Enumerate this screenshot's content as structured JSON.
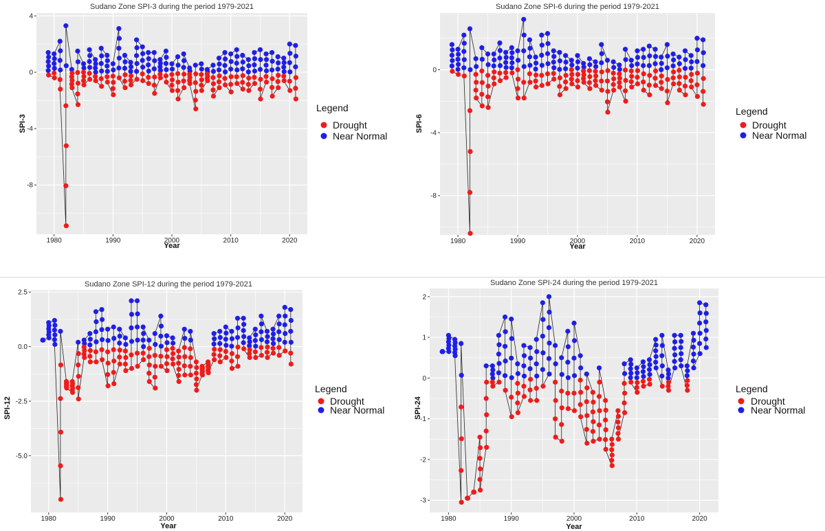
{
  "chart_data": [
    {
      "type": "scatter",
      "title": "Sudano Zone SPI-3 during the period 1979-2021",
      "xlabel": "Year",
      "ylabel": "SPI-3",
      "xlim": [
        1977,
        2023
      ],
      "ylim": [
        -11.5,
        4.2
      ],
      "xticks": [
        1980,
        1990,
        2000,
        2010,
        2020
      ],
      "yticks": [
        4,
        0,
        -4,
        -8
      ],
      "ytick_labels": [
        "4",
        "0",
        "-4",
        "-8"
      ],
      "grid": true,
      "legend": {
        "title": "Legend",
        "placement": "right",
        "entries": [
          "Drought",
          "Near Normal"
        ]
      },
      "colors": {
        "Drought": "#ee1c1c",
        "Near Normal": "#1f1fe6",
        "panel": "#ebebeb",
        "grid": "#ffffff",
        "line": "#222222"
      },
      "yearly_range": {
        "years": [
          1979,
          1980,
          1981,
          1982,
          1983,
          1984,
          1985,
          1986,
          1987,
          1988,
          1989,
          1990,
          1991,
          1992,
          1993,
          1994,
          1995,
          1996,
          1997,
          1998,
          1999,
          2000,
          2001,
          2002,
          2003,
          2004,
          2005,
          2006,
          2007,
          2008,
          2009,
          2010,
          2011,
          2012,
          2013,
          2014,
          2015,
          2016,
          2017,
          2018,
          2019,
          2020,
          2021
        ],
        "min": [
          -0.2,
          -0.4,
          -1.2,
          -10.9,
          -1.1,
          -2.3,
          -0.9,
          -0.5,
          -0.6,
          -1.0,
          -0.7,
          -1.6,
          -0.4,
          -1.1,
          -0.9,
          -0.5,
          -0.6,
          -0.8,
          -1.5,
          -0.4,
          -0.7,
          -1.3,
          -1.9,
          -1.1,
          -0.8,
          -2.6,
          -1.3,
          -0.6,
          -1.7,
          -1.1,
          -0.9,
          -1.4,
          -0.8,
          -1.2,
          -1.3,
          -0.8,
          -1.9,
          -0.7,
          -1.7,
          -1.1,
          -0.6,
          -1.3,
          -1.9
        ],
        "max": [
          1.4,
          1.3,
          2.2,
          3.3,
          0.2,
          1.5,
          0.6,
          1.6,
          0.9,
          1.7,
          1.2,
          0.6,
          3.1,
          1.2,
          0.7,
          2.3,
          1.8,
          1.4,
          1.4,
          0.9,
          1.5,
          0.6,
          1.1,
          1.3,
          0.3,
          0.5,
          0.6,
          0.2,
          0.5,
          1.0,
          1.4,
          1.3,
          1.6,
          1.2,
          0.9,
          1.4,
          1.6,
          1.3,
          1.4,
          1.1,
          1.0,
          2.0,
          1.9
        ]
      }
    },
    {
      "type": "scatter",
      "title": "Sudano Zone SPI-6 during the period 1979-2021",
      "xlabel": "Year",
      "ylabel": "SPI-6",
      "xlim": [
        1977,
        2023
      ],
      "ylim": [
        -10.5,
        3.6
      ],
      "xticks": [
        1980,
        1990,
        2000,
        2010,
        2020
      ],
      "yticks": [
        0,
        -4,
        -8
      ],
      "ytick_labels": [
        "0",
        "-4",
        "-8"
      ],
      "grid": true,
      "legend": {
        "title": "Legend",
        "placement": "right",
        "entries": [
          "Drought",
          "Near Normal"
        ]
      },
      "colors": {
        "Drought": "#ee1c1c",
        "Near Normal": "#1f1fe6",
        "panel": "#ebebeb",
        "grid": "#ffffff",
        "line": "#222222"
      },
      "yearly_range": {
        "years": [
          1979,
          1980,
          1981,
          1982,
          1983,
          1984,
          1985,
          1986,
          1987,
          1988,
          1989,
          1990,
          1991,
          1992,
          1993,
          1994,
          1995,
          1996,
          1997,
          1998,
          1999,
          2000,
          2001,
          2002,
          2003,
          2004,
          2005,
          2006,
          2007,
          2008,
          2009,
          2010,
          2011,
          2012,
          2013,
          2014,
          2015,
          2016,
          2017,
          2018,
          2019,
          2020,
          2021
        ],
        "min": [
          -0.1,
          -0.3,
          -0.4,
          -10.4,
          -1.8,
          -2.3,
          -2.4,
          -0.9,
          -0.7,
          -0.5,
          -0.2,
          -1.8,
          -1.8,
          -0.8,
          -1.1,
          -1.0,
          -0.9,
          -0.6,
          -1.6,
          -1.2,
          -0.9,
          -1.1,
          -0.8,
          -1.2,
          -1.0,
          -1.3,
          -2.7,
          -1.3,
          -1.1,
          -2.0,
          -1.1,
          -0.9,
          -1.3,
          -1.6,
          -1.0,
          -1.2,
          -2.1,
          -0.9,
          -1.3,
          -1.6,
          -1.1,
          -1.7,
          -2.2
        ],
        "max": [
          1.6,
          1.3,
          2.2,
          2.6,
          0.7,
          1.4,
          1.0,
          1.0,
          1.7,
          1.1,
          1.4,
          1.2,
          3.2,
          1.9,
          0.8,
          2.2,
          2.3,
          1.2,
          1.1,
          0.9,
          0.6,
          0.9,
          0.4,
          0.7,
          0.5,
          1.6,
          0.6,
          0.5,
          0.3,
          1.3,
          0.6,
          1.2,
          1.3,
          1.5,
          1.3,
          0.8,
          1.6,
          1.0,
          0.8,
          1.2,
          0.9,
          2.0,
          1.9
        ]
      }
    },
    {
      "type": "scatter",
      "title": "Sudano Zone SPI-12 during the period 1979-2021",
      "xlabel": "Year",
      "ylabel": "SPI-12",
      "xlim": [
        1977,
        2023
      ],
      "ylim": [
        -7.6,
        2.6
      ],
      "xticks": [
        1980,
        1990,
        2000,
        2010,
        2020
      ],
      "yticks": [
        2.5,
        0,
        -2.5,
        -5
      ],
      "ytick_labels": [
        "2.5",
        "0.0",
        "-2.5",
        "-5.0"
      ],
      "grid": true,
      "legend": {
        "title": "Legend",
        "placement": "right",
        "entries": [
          "Drought",
          "Near Normal"
        ]
      },
      "colors": {
        "Drought": "#ee1c1c",
        "Near Normal": "#1f1fe6",
        "panel": "#ebebeb",
        "grid": "#ffffff",
        "line": "#222222"
      },
      "yearly_range": {
        "years": [
          1979,
          1980,
          1981,
          1982,
          1983,
          1984,
          1985,
          1986,
          1987,
          1988,
          1989,
          1990,
          1991,
          1992,
          1993,
          1994,
          1995,
          1996,
          1997,
          1998,
          1999,
          2000,
          2001,
          2002,
          2003,
          2004,
          2005,
          2006,
          2007,
          2008,
          2009,
          2010,
          2011,
          2012,
          2013,
          2014,
          2015,
          2016,
          2017,
          2018,
          2019,
          2020,
          2021
        ],
        "min": [
          0.3,
          0.4,
          0.1,
          -7.0,
          -1.9,
          -2.1,
          -2.4,
          -0.5,
          -0.7,
          -0.7,
          -0.6,
          -1.8,
          -1.7,
          -0.8,
          -1.1,
          -1.0,
          -0.9,
          -0.6,
          -1.6,
          -1.9,
          -0.9,
          -1.1,
          -0.8,
          -1.6,
          -1.3,
          -1.3,
          -2.0,
          -1.3,
          -1.2,
          -0.6,
          -0.7,
          -0.5,
          -1.0,
          -0.9,
          -0.1,
          -0.5,
          -0.5,
          -0.4,
          -0.5,
          -0.3,
          -0.4,
          -0.2,
          -0.8
        ],
        "max": [
          0.3,
          1.1,
          1.2,
          0.7,
          -1.6,
          -1.6,
          0.2,
          0.3,
          0.6,
          1.6,
          1.7,
          0.8,
          0.9,
          0.8,
          0.4,
          2.1,
          2.1,
          0.9,
          0.3,
          0.6,
          1.4,
          0.5,
          0.4,
          -0.2,
          0.8,
          0.7,
          -0.7,
          -0.9,
          -0.7,
          0.6,
          0.7,
          0.9,
          0.7,
          1.3,
          1.3,
          0.4,
          0.8,
          1.4,
          0.7,
          0.8,
          1.4,
          1.8,
          1.7
        ]
      }
    },
    {
      "type": "scatter",
      "title": "Sudano Zone SPI-24 during the period 1979-2021",
      "xlabel": "Year",
      "ylabel": "SPI-24",
      "xlim": [
        1977,
        2023
      ],
      "ylim": [
        -3.3,
        2.2
      ],
      "xticks": [
        1980,
        1990,
        2000,
        2010,
        2020
      ],
      "yticks": [
        2,
        1,
        0,
        -1,
        -2,
        -3
      ],
      "ytick_labels": [
        "2",
        "1",
        "0",
        "-1",
        "-2",
        "-3"
      ],
      "grid": true,
      "legend": {
        "title": "Legend",
        "placement": "right",
        "entries": [
          "Drought",
          "Near Normal"
        ]
      },
      "colors": {
        "Drought": "#ee1c1c",
        "Near Normal": "#1f1fe6",
        "panel": "#ebebeb",
        "grid": "#ffffff",
        "line": "#222222"
      },
      "yearly_range": {
        "years": [
          1979,
          1980,
          1981,
          1982,
          1983,
          1984,
          1985,
          1986,
          1987,
          1988,
          1989,
          1990,
          1991,
          1992,
          1993,
          1994,
          1995,
          1996,
          1997,
          1998,
          1999,
          2000,
          2001,
          2002,
          2003,
          2004,
          2005,
          2006,
          2007,
          2008,
          2009,
          2010,
          2011,
          2012,
          2013,
          2014,
          2015,
          2016,
          2017,
          2018,
          2019,
          2020,
          2021
        ],
        "min": [
          0.65,
          0.65,
          0.55,
          -3.05,
          -2.95,
          -2.8,
          -2.75,
          -1.7,
          -0.2,
          -0.1,
          -0.3,
          -0.95,
          -0.85,
          -0.45,
          -0.55,
          -0.55,
          -0.2,
          0.1,
          -1.45,
          -1.55,
          -0.75,
          -0.8,
          -0.95,
          -1.6,
          -1.55,
          -1.5,
          -1.75,
          -2.15,
          -1.5,
          -0.85,
          -0.1,
          -0.35,
          -0.2,
          -0.15,
          0.25,
          -0.2,
          -0.3,
          0.25,
          0.3,
          -0.3,
          0.25,
          0.6,
          0.75
        ],
        "max": [
          0.65,
          1.05,
          0.95,
          0.85,
          -2.95,
          -2.8,
          -1.45,
          0.3,
          0.3,
          1.05,
          1.5,
          1.45,
          0.35,
          0.8,
          0.75,
          0.95,
          1.85,
          2.0,
          0.8,
          0.5,
          1.15,
          1.35,
          0.55,
          0.1,
          -0.35,
          0.25,
          -0.55,
          -1.5,
          -0.8,
          0.35,
          0.45,
          0.25,
          0.4,
          0.45,
          0.95,
          1.05,
          0.2,
          1.05,
          1.05,
          0.3,
          1.1,
          1.85,
          1.8
        ]
      }
    }
  ]
}
